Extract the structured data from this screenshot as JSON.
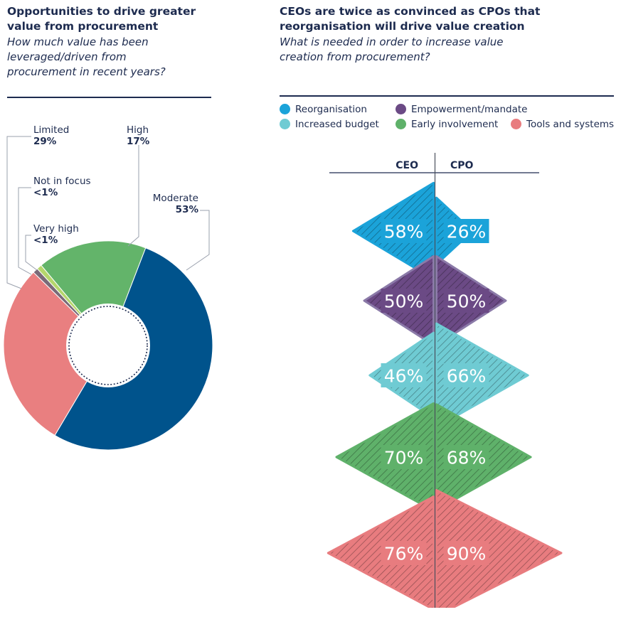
{
  "left": {
    "title_line1": "Opportunities to drive greater",
    "title_line2": "value from procurement",
    "subtitle_line1": "How much value has been",
    "subtitle_line2": "leveraged/driven from",
    "subtitle_line3": "procurement in recent years?"
  },
  "right": {
    "title_line1": "CEOs are twice as convinced as CPOs that",
    "title_line2": "reorganisation will drive value creation",
    "subtitle_line1": "What is needed in order to increase value",
    "subtitle_line2": "creation from procurement?"
  },
  "legend": [
    {
      "label": "Reorganisation",
      "color": "#1ba3d9"
    },
    {
      "label": "Empowerment/mandate",
      "color": "#6b4a85"
    },
    {
      "label": "Increased budget",
      "color": "#6fcbd3"
    },
    {
      "label": "Early involvement",
      "color": "#5fb16a"
    },
    {
      "label": "Tools and systems",
      "color": "#e87c7f"
    }
  ],
  "chart_data": [
    {
      "type": "pie",
      "style": "donut",
      "slices": [
        {
          "label": "Moderate",
          "value": 53,
          "display": "53%",
          "color": "#00538c"
        },
        {
          "label": "Limited",
          "value": 29,
          "display": "29%",
          "color": "#e97f80"
        },
        {
          "label": "Not in focus",
          "value": 0.8,
          "display": "<1%",
          "color": "#7a6a78"
        },
        {
          "label": "Very high",
          "value": 0.8,
          "display": "<1%",
          "color": "#b5d66c"
        },
        {
          "label": "High",
          "value": 17,
          "display": "17%",
          "color": "#63b46a"
        }
      ]
    },
    {
      "type": "bar",
      "style": "mirrored-triangles",
      "columns": [
        "CEO",
        "CPO"
      ],
      "categories": [
        "Reorganisation",
        "Empowerment/mandate",
        "Increased budget",
        "Early involvement",
        "Tools and systems"
      ],
      "series": [
        {
          "name": "CEO",
          "values": [
            58,
            50,
            46,
            70,
            76
          ]
        },
        {
          "name": "CPO",
          "values": [
            26,
            50,
            66,
            68,
            90
          ]
        }
      ],
      "colors": [
        "#1ba3d9",
        "#6b4a85",
        "#6fcbd3",
        "#5fb16a",
        "#e87c7f"
      ]
    }
  ]
}
